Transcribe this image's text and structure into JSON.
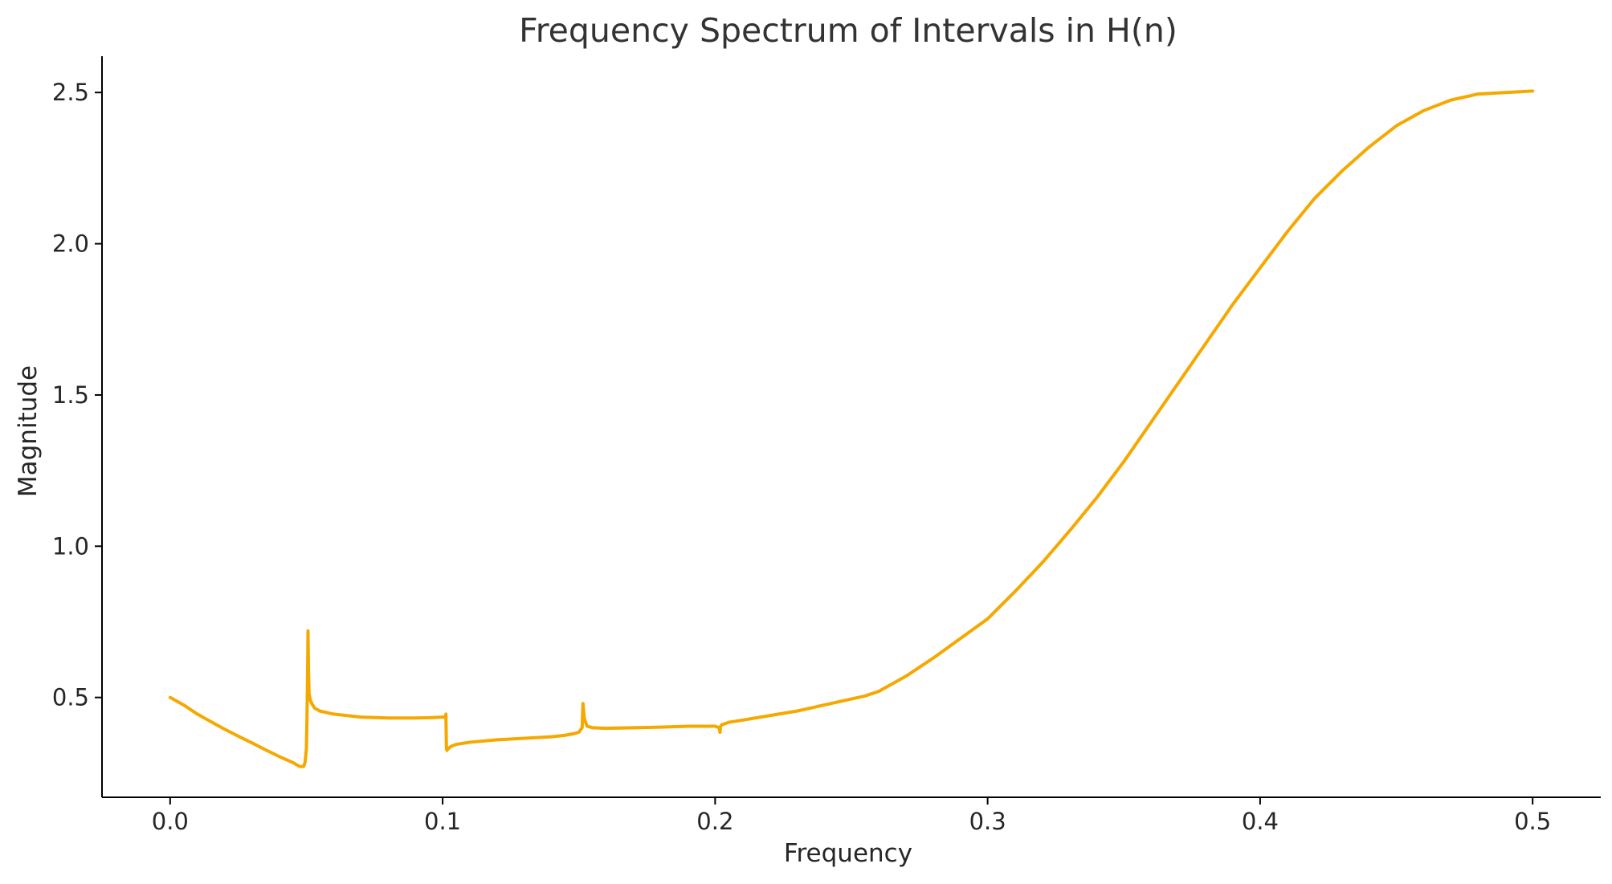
{
  "chart_data": {
    "type": "line",
    "title": "Frequency Spectrum of Intervals in H(n)",
    "xlabel": "Frequency",
    "ylabel": "Magnitude",
    "xlim": [
      -0.025,
      0.525
    ],
    "ylim": [
      0.17,
      2.62
    ],
    "xticks": [
      0.0,
      0.1,
      0.2,
      0.3,
      0.4,
      0.5
    ],
    "xtick_labels": [
      "0.0",
      "0.1",
      "0.2",
      "0.3",
      "0.4",
      "0.5"
    ],
    "yticks": [
      0.5,
      1.0,
      1.5,
      2.0,
      2.5
    ],
    "ytick_labels": [
      "0.5",
      "1.0",
      "1.5",
      "2.0",
      "2.5"
    ],
    "grid": false,
    "legend": "none",
    "line_color": "#F5A800",
    "series": [
      {
        "x": [
          0.0,
          0.005,
          0.01,
          0.015,
          0.02,
          0.025,
          0.03,
          0.035,
          0.04,
          0.045,
          0.0475,
          0.049,
          0.0495,
          0.05,
          0.0502,
          0.0504,
          0.0506,
          0.0508,
          0.051,
          0.0515,
          0.052,
          0.053,
          0.055,
          0.06,
          0.07,
          0.08,
          0.09,
          0.095,
          0.1,
          0.101,
          0.1012,
          0.1014,
          0.1016,
          0.102,
          0.103,
          0.105,
          0.11,
          0.12,
          0.13,
          0.14,
          0.145,
          0.148,
          0.15,
          0.1512,
          0.1515,
          0.152,
          0.153,
          0.155,
          0.16,
          0.17,
          0.18,
          0.19,
          0.2,
          0.2015,
          0.2018,
          0.202,
          0.2025,
          0.2035,
          0.205,
          0.21,
          0.22,
          0.23,
          0.24,
          0.25,
          0.2525,
          0.255,
          0.26,
          0.27,
          0.28,
          0.29,
          0.3,
          0.31,
          0.32,
          0.33,
          0.34,
          0.35,
          0.36,
          0.37,
          0.38,
          0.39,
          0.4,
          0.41,
          0.42,
          0.43,
          0.44,
          0.45,
          0.46,
          0.47,
          0.48,
          0.49,
          0.5
        ],
        "y": [
          0.5,
          0.475,
          0.445,
          0.42,
          0.395,
          0.372,
          0.35,
          0.327,
          0.305,
          0.285,
          0.272,
          0.272,
          0.285,
          0.33,
          0.42,
          0.55,
          0.72,
          0.58,
          0.51,
          0.49,
          0.48,
          0.465,
          0.455,
          0.445,
          0.435,
          0.432,
          0.432,
          0.433,
          0.435,
          0.435,
          0.445,
          0.33,
          0.325,
          0.33,
          0.338,
          0.345,
          0.352,
          0.36,
          0.365,
          0.37,
          0.375,
          0.38,
          0.385,
          0.4,
          0.48,
          0.43,
          0.405,
          0.4,
          0.398,
          0.4,
          0.402,
          0.405,
          0.405,
          0.4,
          0.385,
          0.405,
          0.41,
          0.413,
          0.418,
          0.425,
          0.44,
          0.455,
          0.475,
          0.495,
          0.5,
          0.505,
          0.52,
          0.57,
          0.63,
          0.695,
          0.76,
          0.85,
          0.945,
          1.05,
          1.16,
          1.28,
          1.41,
          1.54,
          1.67,
          1.8,
          1.92,
          2.04,
          2.15,
          2.24,
          2.32,
          2.39,
          2.44,
          2.475,
          2.495,
          2.5,
          2.505
        ]
      }
    ]
  }
}
